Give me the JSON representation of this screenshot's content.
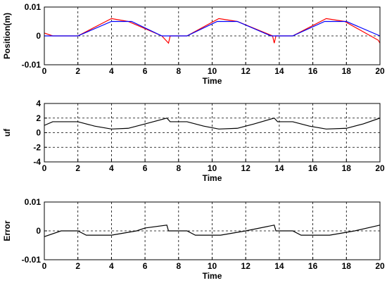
{
  "chart_data": [
    {
      "type": "line",
      "xlabel": "Time",
      "ylabel": "Position(m)",
      "xlim": [
        0,
        20
      ],
      "xticks": [
        0,
        2,
        4,
        6,
        8,
        10,
        12,
        14,
        16,
        18,
        20
      ],
      "ylim": [
        -0.01,
        0.01
      ],
      "yticks": [
        -0.01,
        0,
        0.01
      ],
      "grid": true,
      "series": [
        {
          "color": "#ff0000",
          "x": [
            0,
            0.5,
            2,
            4,
            5,
            7,
            7.4,
            7.5,
            8.5,
            10.4,
            11.5,
            13.6,
            13.7,
            13.8,
            14.8,
            16.8,
            17.9,
            19.9,
            20
          ],
          "values": [
            0.001,
            0,
            0,
            0.006,
            0.005,
            0,
            -0.0025,
            0,
            0,
            0.006,
            0.005,
            0,
            -0.0025,
            0,
            0,
            0.006,
            0.005,
            -0.0015,
            -0.0025
          ]
        },
        {
          "color": "#0000ff",
          "x": [
            0,
            2,
            4,
            5.2,
            7,
            8.5,
            10.3,
            11.5,
            13.5,
            14.8,
            16.7,
            18,
            20
          ],
          "values": [
            0,
            0,
            0.005,
            0.005,
            0,
            0,
            0.005,
            0.005,
            0,
            0,
            0.005,
            0.005,
            0
          ]
        }
      ]
    },
    {
      "type": "line",
      "xlabel": "Time",
      "ylabel": "uf",
      "xlim": [
        0,
        20
      ],
      "xticks": [
        0,
        2,
        4,
        6,
        8,
        10,
        12,
        14,
        16,
        18,
        20
      ],
      "ylim": [
        -4,
        4
      ],
      "yticks": [
        -4,
        -2,
        0,
        2,
        4
      ],
      "grid": true,
      "series": [
        {
          "color": "#000000",
          "x": [
            0,
            0.5,
            2,
            3,
            4,
            5,
            6,
            7.3,
            7.5,
            8.5,
            9.5,
            10.4,
            11.5,
            12.5,
            13.7,
            13.9,
            14.8,
            15.8,
            16.8,
            18,
            19,
            20
          ],
          "values": [
            1,
            1.5,
            1.5,
            0.9,
            0.5,
            0.6,
            1.2,
            2,
            1.5,
            1.5,
            0.9,
            0.5,
            0.6,
            1.2,
            2,
            1.5,
            1.5,
            0.9,
            0.5,
            0.6,
            1.2,
            2
          ]
        }
      ]
    },
    {
      "type": "line",
      "xlabel": "Time",
      "ylabel": "Error",
      "xlim": [
        0,
        20
      ],
      "xticks": [
        0,
        2,
        4,
        6,
        8,
        10,
        12,
        14,
        16,
        18,
        20
      ],
      "ylim": [
        -0.01,
        0.01
      ],
      "yticks": [
        -0.01,
        0,
        0.01
      ],
      "grid": true,
      "series": [
        {
          "color": "#000000",
          "x": [
            0,
            1,
            2,
            2.5,
            4,
            5.5,
            6,
            7.3,
            7.4,
            8.5,
            9,
            10.5,
            12,
            13.7,
            13.8,
            14.8,
            15.3,
            17,
            18.5,
            20
          ],
          "values": [
            -0.002,
            0,
            0,
            -0.0015,
            -0.0015,
            0,
            0.001,
            0.002,
            0,
            0,
            -0.0015,
            -0.0015,
            0,
            0.002,
            0,
            0,
            -0.0015,
            -0.0015,
            0,
            0.002
          ]
        }
      ]
    }
  ]
}
